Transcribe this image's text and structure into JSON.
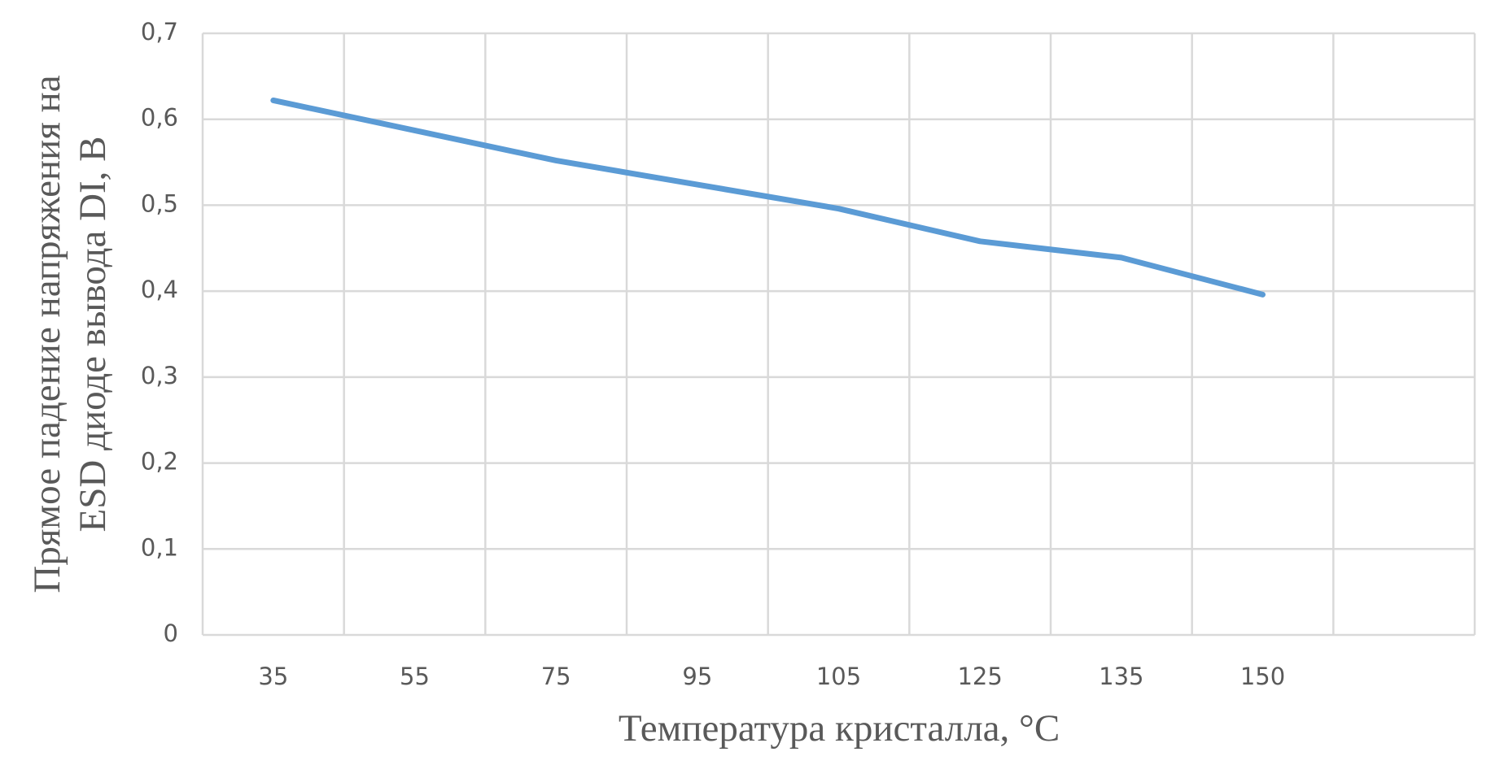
{
  "chart_data": {
    "type": "line",
    "x_label": "Температура кристалла, °C",
    "y_label": [
      "Прямое падение напряжения на",
      "ESD диоде вывода DI, В"
    ],
    "categories": [
      "35",
      "55",
      "75",
      "95",
      "105",
      "125",
      "135",
      "150",
      null
    ],
    "series": [
      {
        "name": "Прямое падение напряжения",
        "color": "#5b9bd5",
        "values": [
          0.622,
          0.587,
          0.552,
          0.524,
          0.496,
          0.458,
          0.439,
          0.396,
          null
        ]
      }
    ],
    "ylim": [
      0,
      0.7
    ],
    "yticks": [
      0,
      {
        "value": 0.1,
        "label": "0,1"
      },
      {
        "value": 0.2,
        "label": "0,2"
      },
      {
        "value": 0.3,
        "label": "0,3"
      },
      {
        "value": 0.4,
        "label": "0,4"
      },
      {
        "value": 0.5,
        "label": "0,5"
      },
      {
        "value": 0.6,
        "label": "0,6"
      },
      {
        "value": 0.7,
        "label": "0,7"
      }
    ],
    "grid": true
  }
}
